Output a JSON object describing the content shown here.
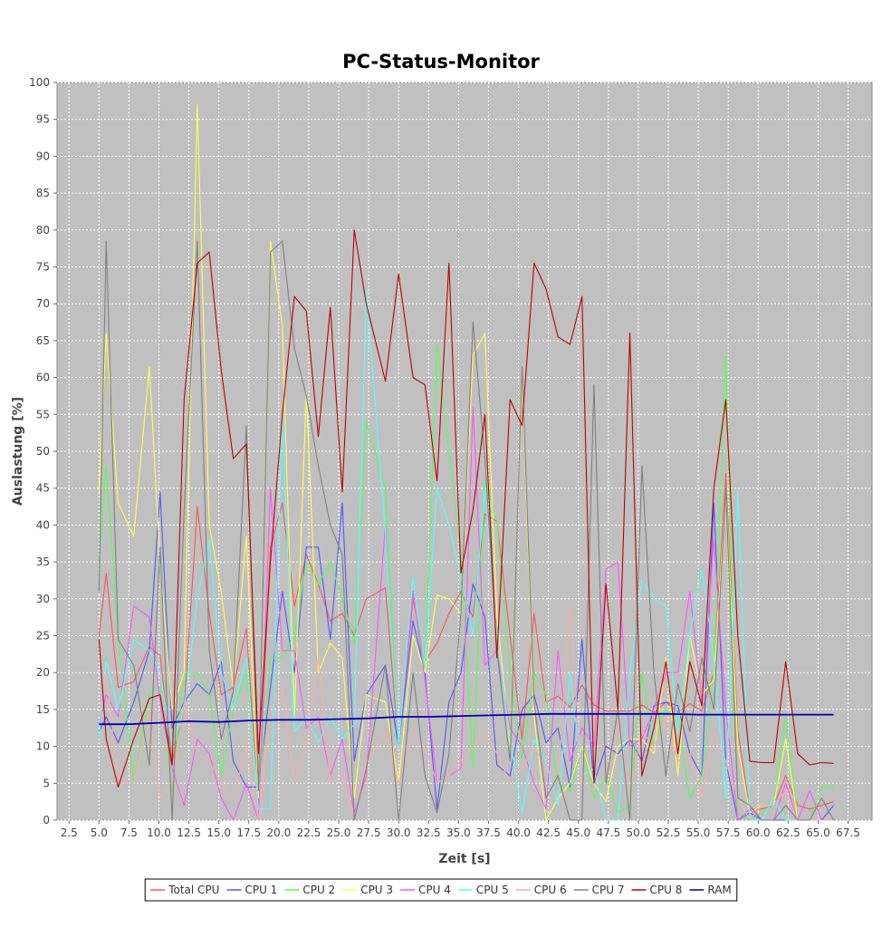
{
  "chart_data": {
    "type": "line",
    "title": "PC-Status-Monitor",
    "xlabel": "Zeit [s]",
    "ylabel": "Auslastung [%]",
    "xlim": [
      1.5,
      69.5
    ],
    "ylim": [
      0,
      100
    ],
    "x_ticks": [
      "2.5",
      "5.0",
      "7.5",
      "10.0",
      "12.5",
      "15.0",
      "17.5",
      "20.0",
      "22.5",
      "25.0",
      "27.5",
      "30.0",
      "32.5",
      "35.0",
      "37.5",
      "40.0",
      "42.5",
      "45.0",
      "47.5",
      "50.0",
      "52.5",
      "55.0",
      "57.5",
      "60.0",
      "62.5",
      "65.0",
      "67.5"
    ],
    "y_ticks": [
      "0",
      "5",
      "10",
      "15",
      "20",
      "25",
      "30",
      "35",
      "40",
      "45",
      "50",
      "55",
      "60",
      "65",
      "70",
      "75",
      "80",
      "85",
      "90",
      "95",
      "100"
    ],
    "grid": true,
    "legend_position": "bottom",
    "background": "#c0c0c0",
    "series": [
      {
        "name": "Total CPU",
        "color": "#ff5555",
        "x": [
          5.0,
          5.6,
          6.6,
          7.9,
          9.2,
          10.1,
          11.1,
          12.1,
          13.2,
          14.2,
          15.2,
          16.2,
          17.3,
          18.3,
          19.3,
          20.3,
          21.3,
          22.3,
          23.3,
          24.3,
          25.3,
          26.3,
          27.3,
          28.9,
          30.0,
          31.2,
          32.2,
          33.2,
          34.2,
          35.2,
          36.2,
          37.2,
          38.2,
          39.3,
          40.3,
          41.3,
          42.3,
          43.3,
          44.3,
          45.3,
          46.3,
          47.3,
          48.3,
          49.3,
          50.3,
          51.3,
          52.3,
          53.3,
          54.3,
          55.3,
          56.3,
          57.3,
          58.3,
          59.3,
          60.3,
          61.3,
          62.3,
          63.3,
          64.3,
          65.3,
          66.3
        ],
        "y": [
          25,
          33.5,
          18,
          18.8,
          23.5,
          22.3,
          8,
          15,
          42.5,
          28,
          17,
          18,
          26,
          2,
          37,
          43,
          29,
          36,
          32,
          27,
          28,
          25,
          30,
          31.5,
          10,
          30,
          21.5,
          24,
          28,
          31,
          27.5,
          41.5,
          40.5,
          25,
          11,
          28,
          16,
          16.8,
          15.3,
          18.3,
          15.6,
          14.8,
          14.8,
          14.8,
          15.6,
          14.6,
          16,
          14.6,
          15.8,
          14.8,
          20,
          47,
          12,
          1.5,
          1.5,
          2,
          6,
          2,
          1.5,
          2,
          2.5
        ]
      },
      {
        "name": "CPU 1",
        "color": "#5555ff",
        "x": [
          5.0,
          5.6,
          6.6,
          7.9,
          9.2,
          10.1,
          11.1,
          12.1,
          13.2,
          14.2,
          15.2,
          16.2,
          17.3,
          18.3,
          19.3,
          20.3,
          21.3,
          22.3,
          23.3,
          24.3,
          25.3,
          26.3,
          27.3,
          28.9,
          30.0,
          31.2,
          32.2,
          33.2,
          34.2,
          35.2,
          36.2,
          37.2,
          38.2,
          39.3,
          40.3,
          41.3,
          42.3,
          43.3,
          44.3,
          45.3,
          46.3,
          47.3,
          48.3,
          49.3,
          50.3,
          51.3,
          52.3,
          53.3,
          54.3,
          55.3,
          56.3,
          57.3,
          58.3,
          59.3,
          60.3,
          61.3,
          62.3,
          63.3,
          64.3,
          65.3,
          66.3
        ],
        "y": [
          12,
          14,
          10.5,
          16,
          23,
          44.5,
          12.5,
          16,
          18.5,
          17,
          21.5,
          8,
          4.5,
          4.5,
          18,
          31,
          20,
          37,
          37,
          24.5,
          43,
          8,
          17,
          21,
          10,
          27,
          20,
          1.5,
          16,
          20,
          32,
          27.5,
          7.5,
          6,
          15,
          17,
          10.5,
          12.5,
          4.5,
          24.5,
          5,
          10,
          9,
          11,
          8,
          15.5,
          16,
          15.5,
          9,
          6,
          43,
          8,
          0,
          1,
          0,
          0,
          0,
          0,
          0,
          0,
          2
        ]
      },
      {
        "name": "CPU 2",
        "color": "#55ff55",
        "x": [
          5.0,
          5.6,
          6.6,
          7.9,
          9.2,
          10.1,
          11.1,
          12.1,
          13.2,
          14.2,
          15.2,
          16.2,
          17.3,
          18.3,
          19.3,
          20.3,
          21.3,
          22.3,
          23.3,
          24.3,
          25.3,
          26.3,
          27.3,
          28.9,
          30.0,
          31.2,
          32.2,
          33.2,
          34.2,
          35.2,
          36.2,
          37.2,
          38.2,
          39.3,
          40.3,
          41.3,
          42.3,
          43.3,
          44.3,
          45.3,
          46.3,
          47.3,
          48.3,
          49.3,
          50.3,
          51.3,
          52.3,
          53.3,
          54.3,
          55.3,
          56.3,
          57.3,
          58.3,
          59.3,
          60.3,
          61.3,
          62.3,
          63.3,
          64.3,
          65.3,
          66.3
        ],
        "y": [
          35,
          48,
          25,
          5,
          17,
          18,
          4,
          20,
          20,
          17,
          6,
          15,
          20,
          3,
          22,
          22,
          25,
          35,
          32,
          35,
          30,
          24,
          54,
          45,
          10,
          31,
          20,
          64.5,
          50,
          36,
          7,
          46,
          40.5,
          20,
          8,
          20,
          17,
          5,
          4,
          10,
          3,
          6,
          1,
          2,
          20,
          10,
          15,
          14,
          3,
          6,
          20,
          63,
          1,
          0,
          1,
          2,
          14,
          0,
          0,
          4.5,
          4.5
        ]
      },
      {
        "name": "CPU 3",
        "color": "#ffff55",
        "x": [
          5.0,
          5.6,
          6.6,
          7.9,
          9.2,
          10.1,
          11.1,
          12.1,
          13.2,
          14.2,
          15.2,
          16.2,
          17.3,
          18.3,
          19.3,
          20.3,
          21.3,
          22.3,
          23.3,
          24.3,
          25.3,
          26.3,
          27.3,
          28.9,
          30.0,
          31.2,
          32.2,
          33.2,
          34.2,
          35.2,
          36.2,
          37.2,
          38.2,
          39.3,
          40.3,
          41.3,
          42.3,
          43.3,
          44.3,
          45.3,
          46.3,
          47.3,
          48.3,
          49.3,
          50.3,
          51.3,
          52.3,
          53.3,
          54.3,
          55.3,
          56.3,
          57.3,
          58.3,
          59.3,
          60.3,
          61.3,
          62.3,
          63.3,
          64.3,
          65.3,
          66.3
        ],
        "y": [
          44.5,
          66,
          43,
          38.5,
          61.5,
          35,
          15,
          20,
          97,
          40,
          31,
          18,
          38.5,
          3,
          78.5,
          67,
          14,
          58,
          20,
          24,
          22,
          3,
          17,
          16,
          5,
          25,
          20,
          30.5,
          30,
          28,
          63,
          66,
          28,
          10,
          60,
          14,
          0,
          3,
          5,
          10,
          5,
          2.5,
          10,
          11,
          11,
          9,
          22,
          6,
          25,
          17,
          19,
          45,
          10,
          1,
          2,
          2,
          11,
          0,
          0,
          0,
          0
        ]
      },
      {
        "name": "CPU 4",
        "color": "#ff55ff",
        "x": [
          5.0,
          5.6,
          6.6,
          7.9,
          9.2,
          10.1,
          11.1,
          12.1,
          13.2,
          14.2,
          15.2,
          16.2,
          17.3,
          18.3,
          19.3,
          20.3,
          21.3,
          22.3,
          23.3,
          24.3,
          25.3,
          26.3,
          27.3,
          28.9,
          30.0,
          31.2,
          32.2,
          33.2,
          34.2,
          35.2,
          36.2,
          37.2,
          38.2,
          39.3,
          40.3,
          41.3,
          42.3,
          43.3,
          44.3,
          45.3,
          46.3,
          47.3,
          48.3,
          49.3,
          50.3,
          51.3,
          52.3,
          53.3,
          54.3,
          55.3,
          56.3,
          57.3,
          58.3,
          59.3,
          60.3,
          61.3,
          62.3,
          63.3,
          64.3,
          65.3,
          66.3
        ],
        "y": [
          13,
          17,
          14,
          29,
          27.5,
          16,
          7,
          2,
          11,
          9,
          3,
          0,
          5,
          0,
          45,
          23,
          23,
          12.5,
          14,
          6,
          11,
          1,
          6,
          40,
          10,
          31,
          19,
          5,
          6,
          7,
          56,
          21,
          23,
          12.5,
          10,
          5,
          1.5,
          23,
          8,
          12.5,
          10,
          34,
          35,
          10,
          11,
          15,
          20,
          20,
          31,
          16,
          38,
          15,
          0,
          1.5,
          0,
          0,
          5,
          0,
          4,
          0,
          0
        ]
      },
      {
        "name": "CPU 5",
        "color": "#55ffff",
        "x": [
          5.0,
          5.6,
          6.6,
          7.9,
          9.2,
          10.1,
          11.1,
          12.1,
          13.2,
          14.2,
          15.2,
          16.2,
          17.3,
          18.3,
          19.3,
          20.3,
          21.3,
          22.3,
          23.3,
          24.3,
          25.3,
          26.3,
          27.3,
          28.9,
          30.0,
          31.2,
          32.2,
          33.2,
          34.2,
          35.2,
          36.2,
          37.2,
          38.2,
          39.3,
          40.3,
          41.3,
          42.3,
          43.3,
          44.3,
          45.3,
          46.3,
          47.3,
          48.3,
          49.3,
          50.3,
          51.3,
          52.3,
          53.3,
          54.3,
          55.3,
          56.3,
          57.3,
          58.3,
          59.3,
          60.3,
          61.3,
          62.3,
          63.3,
          64.3,
          65.3,
          66.3
        ],
        "y": [
          11,
          21.5,
          15,
          24.5,
          23,
          20,
          10,
          15,
          30,
          38,
          20,
          15,
          22,
          1.5,
          1.5,
          55,
          12,
          14,
          10.5,
          14,
          11,
          13,
          72,
          39,
          10,
          33,
          21,
          45,
          40,
          33,
          25,
          45,
          25,
          11,
          1,
          11,
          8,
          2,
          20,
          6,
          7,
          0,
          0,
          20,
          32.5,
          30,
          29,
          12,
          25,
          34,
          22,
          3,
          44.5,
          0,
          0,
          3,
          0,
          0,
          0,
          0,
          0
        ]
      },
      {
        "name": "CPU 6",
        "color": "#ffaaaa",
        "x": [
          5.0,
          5.6,
          6.6,
          7.9,
          9.2,
          10.1,
          11.1,
          12.1,
          13.2,
          14.2,
          15.2,
          16.2,
          17.3,
          18.3,
          19.3,
          20.3,
          21.3,
          22.3,
          23.3,
          24.3,
          25.3,
          26.3,
          27.3,
          28.9,
          30.0,
          31.2,
          32.2,
          33.2,
          34.2,
          35.2,
          36.2,
          37.2,
          38.2,
          39.3,
          40.3,
          41.3,
          42.3,
          43.3,
          44.3,
          45.3,
          46.3,
          47.3,
          48.3,
          49.3,
          50.3,
          51.3,
          52.3,
          53.3,
          54.3,
          55.3,
          56.3,
          57.3,
          58.3,
          59.3,
          60.3,
          61.3,
          62.3,
          63.3,
          64.3,
          65.3,
          66.3
        ],
        "y": [
          14,
          20,
          5,
          5,
          15,
          3,
          5,
          16,
          9,
          8,
          5,
          3,
          10,
          0,
          15,
          18,
          5,
          10,
          22,
          5,
          6,
          0,
          8,
          12,
          5,
          12,
          10,
          5,
          6,
          8,
          10,
          12,
          9,
          5,
          7,
          10,
          7,
          5,
          29,
          5,
          4,
          6,
          13,
          4,
          12,
          10,
          14,
          8,
          9,
          3,
          12,
          8,
          3,
          0,
          2,
          2,
          4,
          0,
          0,
          0,
          0
        ]
      },
      {
        "name": "CPU 7",
        "color": "#808080",
        "x": [
          5.0,
          5.6,
          6.6,
          7.9,
          9.2,
          10.1,
          11.1,
          12.1,
          13.2,
          14.2,
          15.2,
          16.2,
          17.3,
          18.3,
          19.3,
          20.3,
          21.3,
          22.3,
          23.3,
          24.3,
          25.3,
          26.3,
          27.3,
          28.9,
          30.0,
          31.2,
          32.2,
          33.2,
          34.2,
          35.2,
          36.2,
          37.2,
          38.2,
          39.3,
          40.3,
          41.3,
          42.3,
          43.3,
          44.3,
          45.3,
          46.3,
          47.3,
          48.3,
          49.3,
          50.3,
          51.3,
          52.3,
          53.3,
          54.3,
          55.3,
          56.3,
          57.3,
          58.3,
          59.3,
          60.3,
          61.3,
          62.3,
          63.3,
          64.3,
          65.3,
          66.3
        ],
        "y": [
          31,
          78.5,
          24.5,
          21,
          7.5,
          37,
          0,
          42,
          78.5,
          23,
          11,
          17.5,
          53.5,
          4,
          77,
          78.5,
          64,
          57.5,
          48,
          40,
          36,
          0,
          7,
          21,
          0,
          20,
          6,
          1,
          9,
          28,
          67.5,
          49,
          23,
          8,
          61.5,
          16,
          3,
          6,
          0,
          0,
          59,
          5,
          15,
          0,
          48,
          20,
          6,
          18.5,
          12,
          22,
          15,
          45,
          3,
          2,
          0,
          0,
          2,
          0,
          0,
          3,
          0
        ]
      },
      {
        "name": "CPU 8",
        "color": "#bb0000",
        "x": [
          5.0,
          5.6,
          6.6,
          7.9,
          9.2,
          10.1,
          11.1,
          12.1,
          13.2,
          14.2,
          15.2,
          16.2,
          17.3,
          18.3,
          19.3,
          20.3,
          21.3,
          22.3,
          23.3,
          24.3,
          25.3,
          26.3,
          27.3,
          28.9,
          30.0,
          31.2,
          32.2,
          33.2,
          34.2,
          35.2,
          36.2,
          37.2,
          38.2,
          39.3,
          40.3,
          41.3,
          42.3,
          43.3,
          44.3,
          45.3,
          46.3,
          47.3,
          48.3,
          49.3,
          50.3,
          51.3,
          52.3,
          53.3,
          54.3,
          55.3,
          56.3,
          57.3,
          58.3,
          59.3,
          60.3,
          61.3,
          62.3,
          63.3,
          64.3,
          65.3,
          66.3
        ],
        "y": [
          24.5,
          11,
          4.5,
          11,
          16.5,
          17,
          7.5,
          57,
          75.5,
          77,
          61,
          49,
          51,
          9,
          35,
          55,
          71,
          69,
          52,
          69.5,
          44.5,
          80,
          70,
          59.5,
          74,
          60,
          59,
          46,
          75.5,
          33.5,
          42,
          55,
          22,
          57,
          53.5,
          75.5,
          72,
          65.5,
          64.5,
          71,
          5,
          32,
          15,
          66,
          6,
          12.5,
          21.5,
          9,
          21.5,
          15.5,
          45,
          57,
          25,
          8,
          7.8,
          7.8,
          21.5,
          9,
          7.5,
          7.8,
          7.7
        ]
      },
      {
        "name": "RAM",
        "color": "#0000aa",
        "x": [
          5.0,
          7.5,
          10.0,
          12.5,
          15.0,
          17.5,
          20.0,
          22.5,
          25.0,
          27.5,
          30.0,
          32.5,
          35.0,
          37.5,
          40.0,
          42.5,
          45.0,
          47.5,
          50.0,
          52.5,
          55.0,
          57.5,
          60.0,
          62.5,
          65.0,
          66.3
        ],
        "y": [
          13,
          13,
          13.2,
          13.4,
          13.3,
          13.5,
          13.6,
          13.6,
          13.7,
          13.8,
          14,
          14,
          14.1,
          14.2,
          14.3,
          14.4,
          14.4,
          14.4,
          14.4,
          14.4,
          14.3,
          14.3,
          14.3,
          14.3,
          14.3,
          14.3
        ]
      }
    ]
  }
}
